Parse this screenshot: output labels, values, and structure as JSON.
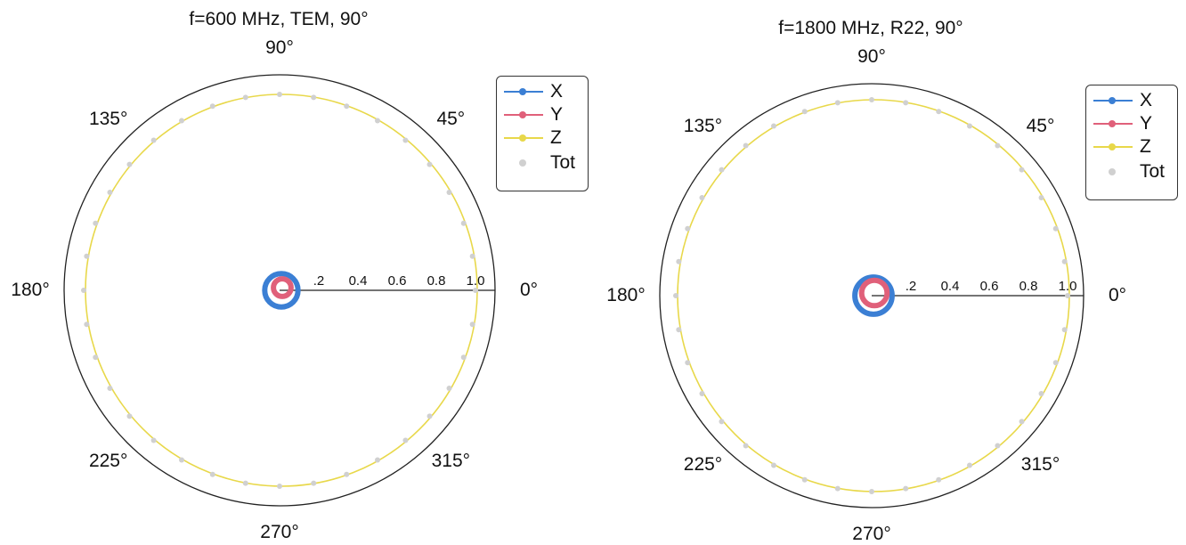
{
  "chart_data": [
    {
      "type": "polar-line",
      "title": "f=600 MHz, TEM, 90°",
      "angle_ticks": [
        "0°",
        "45°",
        "90°",
        "135°",
        "180°",
        "225°",
        "270°",
        "315°"
      ],
      "radial_ticks": [
        ".2",
        "0.4",
        "0.6",
        "0.8",
        "1.0"
      ],
      "rlim": [
        0,
        1.1
      ],
      "legend_placement": "top-right",
      "series": [
        {
          "name": "X",
          "color": "#3b7fd4",
          "r": 0.085
        },
        {
          "name": "Y",
          "color": "#e0607a",
          "r": 0.045
        },
        {
          "name": "Z",
          "color": "#e8d84a",
          "r": 1.0
        },
        {
          "name": "Tot",
          "color": "#d0d0d0",
          "r": 1.0
        }
      ]
    },
    {
      "type": "polar-line",
      "title": "f=1800 MHz, R22, 90°",
      "angle_ticks": [
        "0°",
        "45°",
        "90°",
        "135°",
        "180°",
        "225°",
        "270°",
        "315°"
      ],
      "radial_ticks": [
        ".2",
        "0.4",
        "0.6",
        "0.8",
        "1.0"
      ],
      "rlim": [
        0,
        1.1
      ],
      "legend_placement": "top-right",
      "series": [
        {
          "name": "X",
          "color": "#3b7fd4",
          "r": 0.095
        },
        {
          "name": "Y",
          "color": "#e0607a",
          "r": 0.065
        },
        {
          "name": "Z",
          "color": "#e8d84a",
          "r": 1.0
        },
        {
          "name": "Tot",
          "color": "#d0d0d0",
          "r": 1.0
        }
      ]
    }
  ]
}
